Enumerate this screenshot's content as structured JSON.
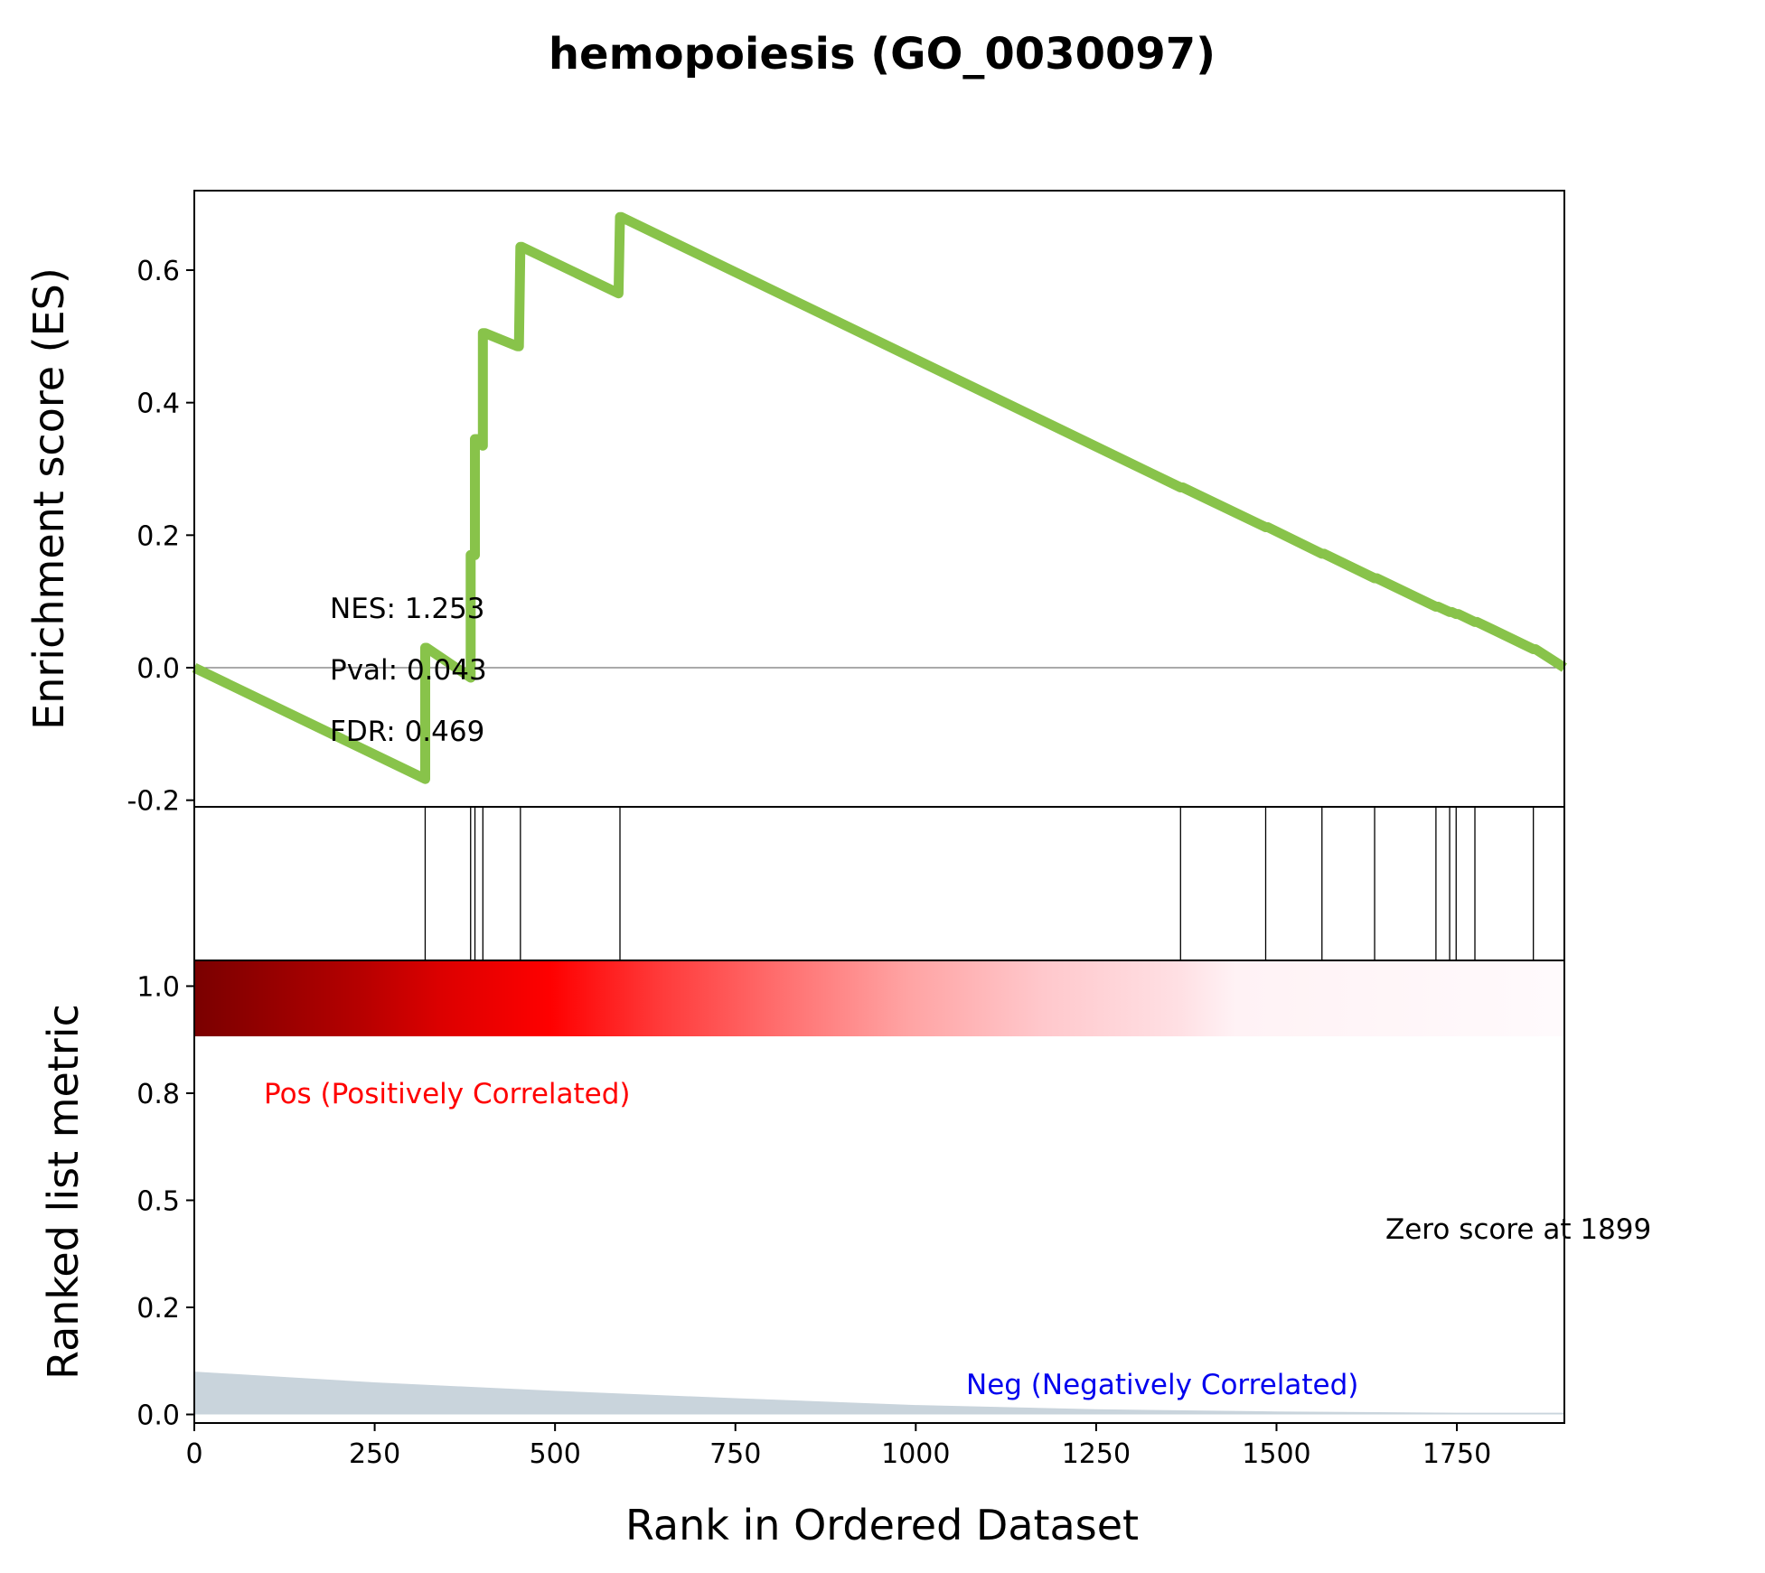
{
  "chart_data": {
    "type": "line",
    "title": "hemopoiesis (GO_0030097)",
    "xlabel": "Rank in Ordered Dataset",
    "ylabel_top": "Enrichment score (ES)",
    "ylabel_bottom": "Ranked list metric",
    "xlim": [
      0,
      1899
    ],
    "es_ylim": [
      -0.21,
      0.72
    ],
    "metric_ylim": [
      -0.02,
      1.06
    ],
    "x_ticks": [
      0,
      250,
      500,
      750,
      1000,
      1250,
      1500,
      1750
    ],
    "x_tick_labels": [
      "0",
      "250",
      "500",
      "750",
      "1000",
      "1250",
      "1500",
      "1750"
    ],
    "es_ticks": [
      -0.2,
      0.0,
      0.2,
      0.4,
      0.6
    ],
    "es_tick_labels": [
      "-0.2",
      "0.0",
      "0.2",
      "0.4",
      "0.6"
    ],
    "metric_ticks": [
      0.0,
      0.25,
      0.5,
      0.75,
      1.0
    ],
    "metric_tick_labels": [
      "0.0",
      "0.2",
      "0.5",
      "0.8",
      "1.0"
    ],
    "es_curve": {
      "color": "#88c34a",
      "x": [
        0,
        320,
        320,
        322,
        383,
        383,
        385,
        389,
        389,
        392,
        400,
        400,
        403,
        403,
        448,
        450,
        452,
        454,
        588,
        588,
        590,
        592,
        1367,
        1370,
        1485,
        1488,
        1563,
        1566,
        1636,
        1639,
        1721,
        1724,
        1740,
        1743,
        1749,
        1752,
        1775,
        1778,
        1856,
        1859,
        1899
      ],
      "y": [
        0.0,
        -0.168,
        0.03,
        0.03,
        -0.015,
        0.17,
        0.17,
        0.17,
        0.345,
        0.345,
        0.335,
        0.505,
        0.505,
        0.505,
        0.485,
        0.485,
        0.635,
        0.635,
        0.565,
        0.565,
        0.68,
        0.68,
        0.272,
        0.272,
        0.212,
        0.212,
        0.172,
        0.172,
        0.135,
        0.135,
        0.092,
        0.092,
        0.084,
        0.084,
        0.081,
        0.081,
        0.069,
        0.069,
        0.028,
        0.028,
        0.0
      ]
    },
    "hits": [
      320,
      383,
      389,
      400,
      452,
      590,
      1367,
      1485,
      1563,
      1636,
      1721,
      1740,
      1749,
      1775,
      1856
    ],
    "metric": {
      "color": "#c9d4dc",
      "x": [
        0,
        250,
        500,
        750,
        1000,
        1250,
        1500,
        1750,
        1899
      ],
      "y": [
        0.1,
        0.075,
        0.055,
        0.038,
        0.022,
        0.012,
        0.007,
        0.004,
        0.004
      ]
    },
    "annotations": {
      "nes": "NES: 1.253",
      "pval": "Pval: 0.043",
      "fdr": "FDR: 0.469",
      "pos": "Pos (Positively Correlated)",
      "neg": "Neg (Negatively Correlated)",
      "zero": "Zero score at 1899"
    },
    "colors": {
      "pos_label": "#ff0000",
      "neg_label": "#0000ee",
      "heat_dark": "#7a0000",
      "heat_mid": "#ff0000",
      "heat_light": "#fff5f8"
    },
    "grid": false
  }
}
